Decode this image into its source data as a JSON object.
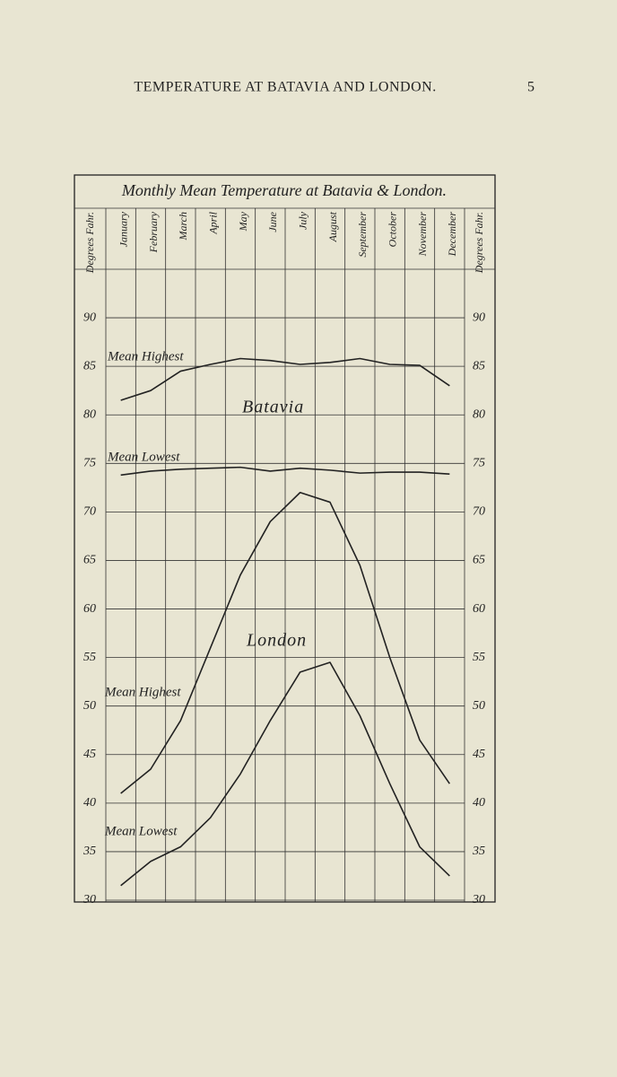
{
  "header": {
    "title": "TEMPERATURE AT BATAVIA AND LONDON.",
    "page_number": "5"
  },
  "chart_data": {
    "type": "line",
    "title": "Monthly Mean Temperature at Batavia & London.",
    "axis_label": "Degrees Fahr.",
    "categories": [
      "January",
      "February",
      "March",
      "April",
      "May",
      "June",
      "July",
      "August",
      "September",
      "October",
      "November",
      "December"
    ],
    "ylim": [
      30,
      95
    ],
    "yticks": [
      30,
      35,
      40,
      45,
      50,
      55,
      60,
      65,
      70,
      75,
      80,
      85,
      90
    ],
    "grid": true,
    "annotations": [
      "Batavia",
      "London"
    ],
    "series": [
      {
        "name": "Mean Highest",
        "group": 0,
        "color": "#222222",
        "values": [
          81.5,
          82.5,
          84.5,
          85.2,
          85.8,
          85.6,
          85.2,
          85.4,
          85.8,
          85.2,
          85.1,
          83.0
        ]
      },
      {
        "name": "Mean Lowest",
        "group": 0,
        "color": "#222222",
        "values": [
          73.8,
          74.2,
          74.4,
          74.5,
          74.6,
          74.2,
          74.5,
          74.3,
          74.0,
          74.1,
          74.1,
          73.9
        ]
      },
      {
        "name": "Mean Highest",
        "group": 1,
        "color": "#222222",
        "values": [
          41.0,
          43.5,
          48.5,
          56.0,
          63.5,
          69.0,
          72.0,
          71.0,
          64.5,
          55.0,
          46.5,
          42.0
        ]
      },
      {
        "name": "Mean Lowest",
        "group": 1,
        "color": "#222222",
        "values": [
          31.5,
          34.0,
          35.5,
          38.5,
          43.0,
          48.5,
          53.5,
          54.5,
          49.0,
          42.0,
          35.5,
          32.5
        ]
      }
    ]
  }
}
